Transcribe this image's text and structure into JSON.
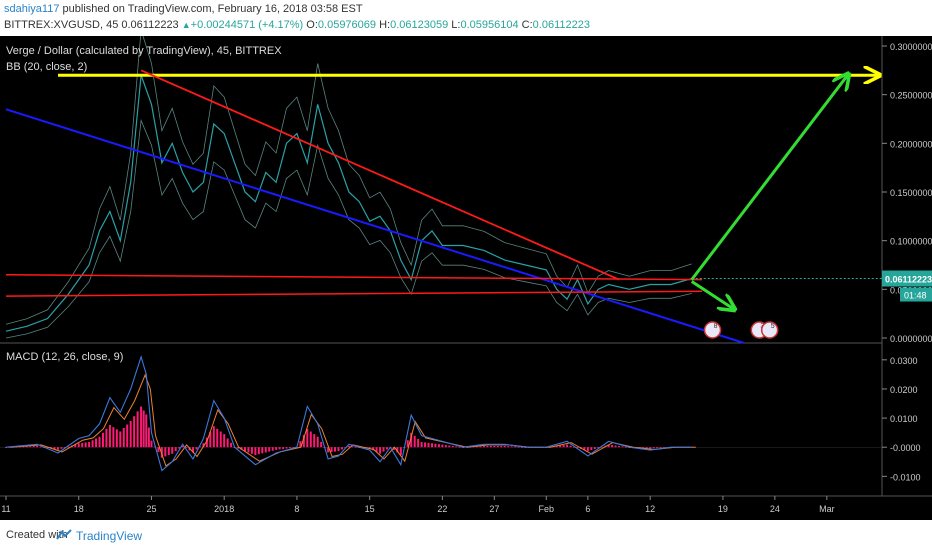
{
  "header": {
    "author": "sdahiya117",
    "published": "published on TradingView.com, February 16, 2018 03:58 EST",
    "symbol_line": "BITTREX:XVGUSD, 45",
    "last": "0.06112223",
    "change": "+0.00244571 (+4.17%)",
    "o_label": "O:",
    "o": "0.05976069",
    "h_label": "H:",
    "h": "0.06123059",
    "l_label": "L:",
    "l": "0.05956104",
    "c_label": "C:",
    "c": "0.06112223"
  },
  "legend": {
    "main": "Verge / Dollar (calculated by TradingView), 45, BITTREX",
    "bb": "BB (20, close, 2)",
    "macd": "MACD (12, 26, close, 9)"
  },
  "footer": {
    "created": "Created with",
    "brand": "TradingView"
  },
  "chart_data": {
    "type": "line",
    "price_ticks": [
      "0.30000000",
      "0.25000000",
      "0.20000000",
      "0.15000000",
      "0.10000000",
      "0.05000000",
      "0.00000000"
    ],
    "price_tick_values": [
      0.3,
      0.25,
      0.2,
      0.15,
      0.1,
      0.05,
      0.0
    ],
    "ylim": [
      0.0,
      0.3
    ],
    "last_price_label": "0.06112223",
    "countdown_label": "01:48",
    "macd_ticks": [
      "0.0300",
      "0.0200",
      "0.0100",
      "-0.0000",
      "-0.0100"
    ],
    "macd_tick_values": [
      0.03,
      0.02,
      0.01,
      0.0,
      -0.01
    ],
    "macd_ylim": [
      -0.014,
      0.032
    ],
    "x_ticks": [
      "11",
      "18",
      "25",
      "2018",
      "8",
      "15",
      "22",
      "27",
      "Feb",
      "6",
      "12",
      "19",
      "24",
      "Mar"
    ],
    "x_tick_positions": [
      0,
      7,
      14,
      21,
      28,
      35,
      42,
      47,
      52,
      56,
      62,
      69,
      74,
      79
    ],
    "xlim": [
      0,
      82
    ],
    "price_series": {
      "x": [
        0,
        2,
        4,
        6,
        7,
        8,
        9,
        10,
        11,
        12,
        13,
        14,
        15,
        16,
        17,
        18,
        19,
        20,
        21,
        22,
        23,
        24,
        25,
        26,
        27,
        28,
        29,
        30,
        31,
        32,
        33,
        34,
        35,
        36,
        37,
        38,
        39,
        40,
        41,
        42,
        44,
        46,
        48,
        50,
        52,
        53,
        54,
        55,
        56,
        57,
        58,
        60,
        62,
        64,
        65,
        66
      ],
      "values": [
        0.007,
        0.012,
        0.02,
        0.045,
        0.06,
        0.075,
        0.11,
        0.13,
        0.1,
        0.16,
        0.27,
        0.24,
        0.18,
        0.2,
        0.17,
        0.15,
        0.16,
        0.22,
        0.21,
        0.18,
        0.15,
        0.14,
        0.17,
        0.16,
        0.2,
        0.21,
        0.18,
        0.24,
        0.2,
        0.18,
        0.15,
        0.14,
        0.12,
        0.125,
        0.11,
        0.08,
        0.06,
        0.1,
        0.11,
        0.095,
        0.095,
        0.09,
        0.08,
        0.075,
        0.07,
        0.05,
        0.04,
        0.06,
        0.035,
        0.05,
        0.055,
        0.05,
        0.055,
        0.055,
        0.058,
        0.061
      ]
    },
    "macd_series": {
      "x": [
        0,
        3,
        5,
        7,
        8,
        9,
        10,
        11,
        12,
        13,
        13.5,
        14,
        15,
        16,
        17,
        18,
        19,
        20,
        21,
        22,
        24,
        26,
        28,
        29,
        30,
        31,
        32,
        33,
        35,
        36,
        37,
        38,
        39,
        40,
        42,
        44,
        46,
        48,
        50,
        52,
        54,
        56,
        58,
        60,
        62,
        64,
        66
      ],
      "values": [
        0.0,
        0.001,
        -0.002,
        0.003,
        0.004,
        0.008,
        0.017,
        0.012,
        0.02,
        0.031,
        0.025,
        0.005,
        -0.008,
        -0.005,
        0.001,
        -0.004,
        0.003,
        0.016,
        0.01,
        0.0,
        -0.006,
        -0.002,
        0.0,
        0.014,
        0.008,
        -0.004,
        -0.003,
        0.001,
        -0.001,
        -0.005,
        0.0,
        -0.006,
        0.011,
        0.004,
        0.002,
        0.0,
        0.001,
        0.001,
        0.0,
        0.0,
        0.002,
        -0.003,
        0.002,
        0.0,
        -0.001,
        0.0,
        0.0
      ]
    },
    "annotations": {
      "horizontal_resistance": {
        "price": 0.27,
        "color": "#ffff00"
      },
      "red_downtrend": {
        "x": [
          13,
          59
        ],
        "price": [
          0.275,
          0.06
        ]
      },
      "blue_support": {
        "x": [
          0,
          71
        ],
        "price": [
          0.235,
          -0.005
        ]
      },
      "red_horizontals": [
        {
          "x": [
            0,
            67
          ],
          "price": [
            0.065,
            0.06
          ]
        },
        {
          "x": [
            0,
            67
          ],
          "price": [
            0.043,
            0.048
          ]
        }
      ],
      "green_up_arrow": {
        "x": [
          66,
          81
        ],
        "price": [
          0.06,
          0.27
        ]
      },
      "green_down_arrow": {
        "x": [
          66,
          70
        ],
        "price": [
          0.058,
          0.03
        ]
      },
      "event_markers": [
        {
          "x": 68,
          "label": "8"
        },
        {
          "x": 72.5,
          "label": "3"
        },
        {
          "x": 73.5,
          "label": "5"
        }
      ]
    },
    "colors": {
      "price": "#2aa1a7",
      "bb": "#6fa5a1",
      "macd_line": "#3c78d8",
      "signal_line": "#f08030",
      "histogram": "#ff1a75",
      "trend_red": "#ff1a1a",
      "trend_blue": "#1a1aff",
      "yellow": "#ffff00",
      "green": "#33dd33",
      "last_price": "#26a69a"
    }
  }
}
